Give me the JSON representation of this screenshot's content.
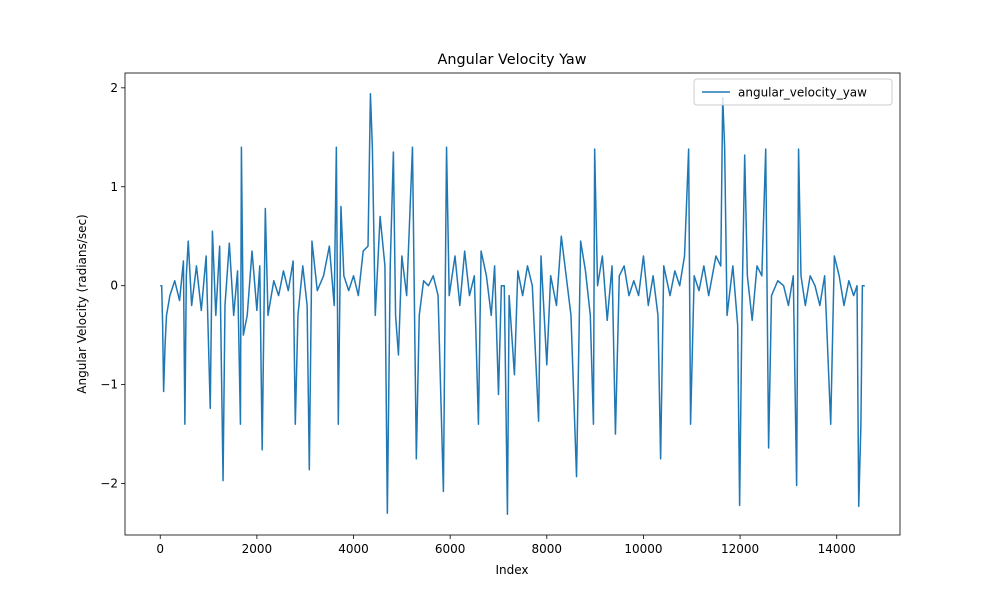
{
  "chart_data": {
    "type": "line",
    "title": "Angular Velocity Yaw",
    "xlabel": "Index",
    "ylabel": "Angular Velocity (radians/sec)",
    "xlim": [
      -729,
      15309
    ],
    "ylim": [
      -2.52,
      2.15
    ],
    "xticks": [
      0,
      2000,
      4000,
      6000,
      8000,
      10000,
      12000,
      14000
    ],
    "yticks": [
      {
        "value": -2,
        "label": "−2"
      },
      {
        "value": -1,
        "label": "−1"
      },
      0,
      1,
      2
    ],
    "grid": false,
    "legend": "upper right",
    "x": [
      0,
      30,
      50,
      70,
      100,
      130,
      200,
      300,
      400,
      480,
      510,
      540,
      580,
      650,
      750,
      850,
      950,
      1035,
      1080,
      1150,
      1230,
      1300,
      1340,
      1430,
      1520,
      1600,
      1660,
      1680,
      1720,
      1800,
      1900,
      2000,
      2060,
      2110,
      2175,
      2230,
      2350,
      2450,
      2550,
      2650,
      2750,
      2795,
      2850,
      2950,
      3040,
      3085,
      3140,
      3250,
      3380,
      3500,
      3600,
      3645,
      3685,
      3740,
      3800,
      3900,
      4000,
      4100,
      4200,
      4300,
      4350,
      4390,
      4450,
      4550,
      4650,
      4700,
      4760,
      4825,
      4870,
      4930,
      5000,
      5100,
      5220,
      5300,
      5360,
      5450,
      5550,
      5650,
      5750,
      5860,
      5925,
      5980,
      6100,
      6200,
      6300,
      6400,
      6500,
      6585,
      6640,
      6750,
      6850,
      6920,
      7000,
      7060,
      7120,
      7185,
      7220,
      7330,
      7400,
      7500,
      7600,
      7700,
      7830,
      7880,
      8000,
      8080,
      8200,
      8300,
      8400,
      8500,
      8615,
      8700,
      8800,
      8900,
      8965,
      8990,
      9050,
      9150,
      9250,
      9350,
      9420,
      9500,
      9600,
      9700,
      9800,
      9900,
      10000,
      10100,
      10200,
      10300,
      10355,
      10420,
      10550,
      10650,
      10750,
      10850,
      10935,
      10975,
      11050,
      11150,
      11250,
      11350,
      11500,
      11600,
      11640,
      11680,
      11730,
      11850,
      11950,
      11990,
      12040,
      12095,
      12150,
      12250,
      12350,
      12450,
      12530,
      12590,
      12650,
      12780,
      12900,
      13000,
      13100,
      13170,
      13210,
      13260,
      13350,
      13450,
      13550,
      13650,
      13750,
      13875,
      13950,
      14050,
      14150,
      14250,
      14350,
      14420,
      14455,
      14500,
      14530,
      14580
    ],
    "series": [
      {
        "name": "angular_velocity_yaw",
        "color": "#1f77b4",
        "values": [
          0,
          0,
          -0.4,
          -1.07,
          -0.6,
          -0.3,
          -0.1,
          0.05,
          -0.15,
          0.25,
          -1.4,
          0.1,
          0.45,
          -0.2,
          0.2,
          -0.25,
          0.3,
          -1.24,
          0.55,
          -0.3,
          0.4,
          -1.97,
          -0.2,
          0.43,
          -0.3,
          0.15,
          -1.4,
          1.4,
          -0.5,
          -0.3,
          0.35,
          -0.25,
          0.2,
          -1.66,
          0.78,
          -0.3,
          0.05,
          -0.1,
          0.15,
          -0.05,
          0.25,
          -1.4,
          -0.3,
          0.2,
          -0.2,
          -1.86,
          0.45,
          -0.05,
          0.1,
          0.4,
          -0.2,
          1.4,
          -1.4,
          0.8,
          0.1,
          -0.05,
          0.1,
          -0.1,
          0.35,
          0.4,
          1.94,
          1.4,
          -0.3,
          0.7,
          0.2,
          -2.3,
          0.2,
          1.35,
          -0.3,
          -0.7,
          0.3,
          -0.1,
          1.4,
          -1.75,
          -0.3,
          0.05,
          0,
          0.1,
          -0.1,
          -2.08,
          1.4,
          -0.1,
          0.3,
          -0.2,
          0.35,
          -0.1,
          0.1,
          -1.4,
          0.35,
          0.1,
          -0.3,
          0.2,
          -1.1,
          0,
          0,
          -2.31,
          -0.1,
          -0.9,
          0.15,
          -0.1,
          0.2,
          0,
          -1.37,
          0.3,
          -0.8,
          0.1,
          -0.2,
          0.5,
          0.1,
          -0.3,
          -1.93,
          0.45,
          0.15,
          -0.3,
          -1.4,
          1.38,
          0,
          0.3,
          -0.35,
          0.2,
          -1.5,
          0.1,
          0.2,
          -0.1,
          0.05,
          -0.1,
          0.3,
          -0.2,
          0.1,
          -0.3,
          -1.75,
          0.2,
          -0.1,
          0.15,
          0,
          0.3,
          1.38,
          -1.4,
          0.1,
          -0.05,
          0.2,
          -0.1,
          0.3,
          0.2,
          1.9,
          1.4,
          -0.3,
          0.2,
          -0.4,
          -2.22,
          -0.2,
          1.32,
          0.1,
          -0.35,
          0.2,
          0.1,
          1.38,
          -1.64,
          -0.1,
          0.05,
          0,
          -0.2,
          0.1,
          -2.02,
          1.38,
          0.1,
          -0.2,
          0.1,
          0,
          -0.2,
          0.1,
          -1.4,
          0.3,
          0.1,
          -0.2,
          0.05,
          -0.1,
          0,
          -2.23,
          -1.4,
          0,
          0
        ]
      }
    ]
  }
}
